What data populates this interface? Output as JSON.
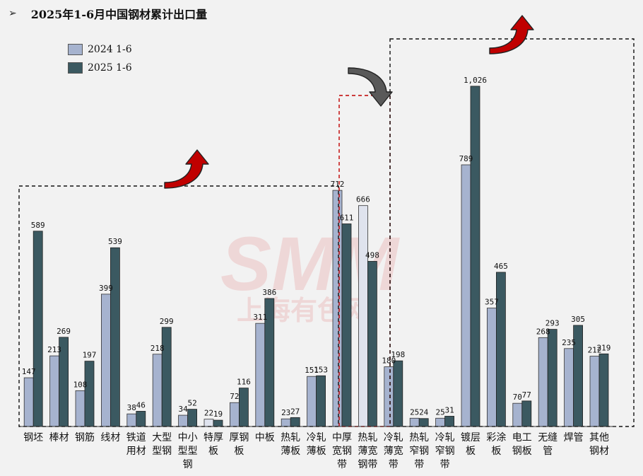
{
  "title_bullet": "➢",
  "title": "2025年1-6月中国钢材累计出口量",
  "watermark": {
    "line1": "SMM",
    "line2": "上海有色网"
  },
  "colors": {
    "s2024": "#a6b3cf",
    "s2025": "#3b5961",
    "s2024_light": "#dfe3ee",
    "red": "#c00000",
    "gray_arrow": "#595959"
  },
  "chart_data": {
    "type": "bar",
    "title": "2025年1-6月中国钢材累计出口量",
    "categories": [
      "钢坯",
      "棒材",
      "钢筋",
      "线材",
      "铁道\n用材",
      "大型\n型钢",
      "中小\n型型\n钢",
      "特厚\n板",
      "厚钢\n板",
      "中板",
      "热轧\n薄板",
      "冷轧\n薄板",
      "中厚\n宽钢\n带",
      "热轧\n薄宽\n钢带",
      "冷轧\n薄宽\n带",
      "热轧\n窄钢\n带",
      "冷轧\n窄钢\n带",
      "镀层\n板",
      "彩涂\n板",
      "电工\n钢板",
      "无缝\n管",
      "焊管",
      "其他\n钢材"
    ],
    "series": [
      {
        "name": "2024 1-6",
        "values": [
          147,
          213,
          108,
          399,
          38,
          218,
          34,
          22,
          72,
          311,
          23,
          151,
          712,
          666,
          180,
          25,
          25,
          789,
          357,
          70,
          268,
          235,
          212
        ],
        "labels": [
          "147",
          "213",
          "108",
          "399",
          "38",
          "218",
          "34",
          "22",
          "72",
          "311",
          "23",
          "151",
          "712",
          "666",
          "180",
          "25",
          "25",
          "789",
          "357",
          "70",
          "268",
          "235",
          "212"
        ]
      },
      {
        "name": "2025 1-6",
        "values": [
          589,
          269,
          197,
          539,
          46,
          299,
          52,
          19,
          116,
          386,
          27,
          153,
          611,
          498,
          198,
          24,
          31,
          1026,
          465,
          77,
          293,
          305,
          219
        ],
        "labels": [
          "589",
          "269",
          "197",
          "539",
          "46",
          "299",
          "52",
          "19",
          "116",
          "386",
          "27",
          "153",
          "611",
          "498",
          "198",
          "24",
          "31",
          "1,026",
          "465",
          "77",
          "293",
          "305",
          "219"
        ]
      }
    ],
    "light_bars_2024": [
      7,
      13
    ],
    "ylim": [
      0,
      1030
    ],
    "grid": false,
    "legend": "top-left",
    "groups": [
      {
        "from": 0,
        "to": 11,
        "style": "black-dashed",
        "arrow": "up-red"
      },
      {
        "from": 12,
        "to": 13,
        "style": "red-dashed",
        "arrow": "down-gray"
      },
      {
        "from": 14,
        "to": 22,
        "style": "black-dashed",
        "arrow": "up-red"
      }
    ]
  }
}
